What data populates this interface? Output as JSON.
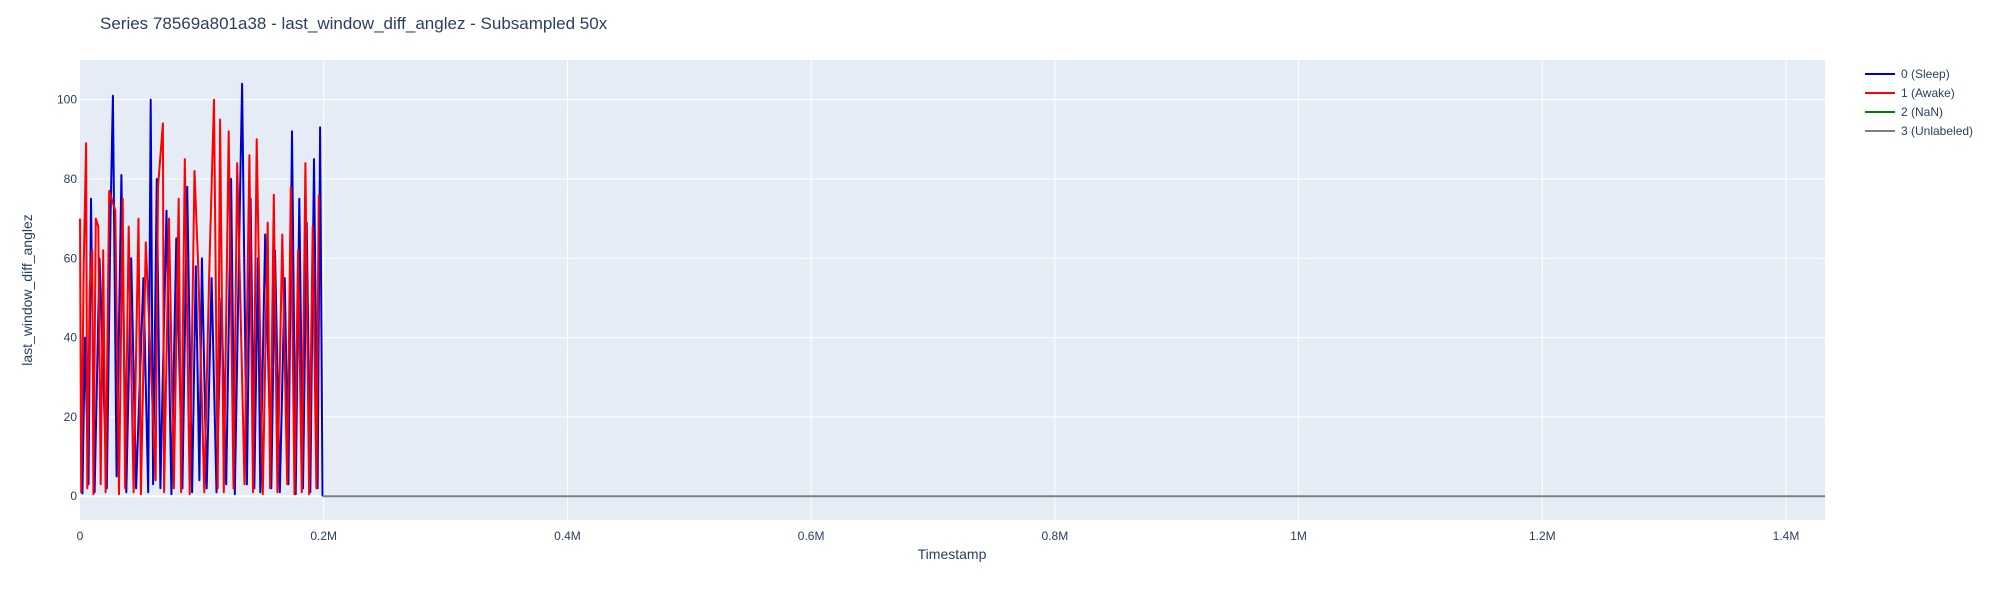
{
  "chart_data": {
    "type": "line",
    "title": "Series 78569a801a38 - last_window_diff_anglez - Subsampled 50x",
    "xlabel": "Timestamp",
    "ylabel": "last_window_diff_anglez",
    "xlim": [
      0,
      1432000
    ],
    "ylim": [
      -6,
      110
    ],
    "x_ticks": [
      {
        "value": 0,
        "label": "0"
      },
      {
        "value": 200000,
        "label": "0.2M"
      },
      {
        "value": 400000,
        "label": "0.4M"
      },
      {
        "value": 600000,
        "label": "0.6M"
      },
      {
        "value": 800000,
        "label": "0.8M"
      },
      {
        "value": 1000000,
        "label": "1M"
      },
      {
        "value": 1200000,
        "label": "1.2M"
      },
      {
        "value": 1400000,
        "label": "1.4M"
      }
    ],
    "y_ticks": [
      {
        "value": 0,
        "label": "0"
      },
      {
        "value": 20,
        "label": "20"
      },
      {
        "value": 40,
        "label": "40"
      },
      {
        "value": 60,
        "label": "60"
      },
      {
        "value": 80,
        "label": "80"
      },
      {
        "value": 100,
        "label": "100"
      }
    ],
    "grid": true,
    "legend_position": "top-right",
    "series": [
      {
        "name": "0 (Sleep)",
        "color": "#0000cc",
        "x": [
          2000,
          4000,
          7000,
          9000,
          12000,
          16000,
          22000,
          25000,
          27000,
          30000,
          34000,
          38000,
          42000,
          46000,
          52000,
          56000,
          58000,
          60000,
          63000,
          66000,
          71000,
          75000,
          79000,
          84000,
          88000,
          92000,
          95000,
          98000,
          100000,
          104000,
          108000,
          112000,
          116000,
          120000,
          124000,
          127000,
          131000,
          133000,
          137000,
          140000,
          143000,
          146000,
          148000,
          152000,
          157000,
          160000,
          164000,
          168000,
          171000,
          174000,
          177000,
          180000,
          183000,
          186000,
          189000,
          192000,
          195000,
          197000,
          199000
        ],
        "y": [
          0.5,
          40,
          3,
          75,
          1,
          60,
          2,
          70,
          101,
          5,
          81,
          1,
          60,
          2,
          55,
          1,
          100,
          3,
          80,
          2,
          72,
          0.5,
          65,
          2,
          78,
          1,
          58,
          4,
          60,
          2,
          55,
          1,
          50,
          3,
          80,
          0.5,
          70,
          104,
          3,
          75,
          2,
          60,
          1,
          66,
          2,
          62,
          1,
          55,
          3,
          92,
          0.5,
          75,
          2,
          69,
          1,
          85,
          2,
          93,
          0
        ]
      },
      {
        "name": "1 (Awake)",
        "color": "#ff0000",
        "x": [
          0,
          1000,
          3000,
          5000,
          6000,
          8000,
          10000,
          11000,
          13000,
          15000,
          17000,
          19000,
          21000,
          24000,
          29000,
          32000,
          35000,
          37000,
          40000,
          44000,
          48000,
          50000,
          54000,
          62000,
          64000,
          68000,
          69000,
          73000,
          77000,
          81000,
          83000,
          86000,
          90000,
          94000,
          97000,
          102000,
          106000,
          110000,
          113000,
          115000,
          118000,
          122000,
          126000,
          129000,
          135000,
          139000,
          142000,
          145000,
          150000,
          154000,
          156000,
          159000,
          162000,
          166000,
          170000,
          173000,
          176000,
          179000,
          182000,
          185000,
          188000,
          191000,
          194000,
          196000
        ],
        "y": [
          70,
          1,
          58,
          89,
          2,
          52,
          62,
          0.5,
          70,
          68,
          3,
          62,
          1,
          77,
          72,
          0.5,
          75,
          2,
          68,
          1,
          70,
          0.5,
          64,
          4,
          78,
          94,
          1,
          70,
          2,
          75,
          1,
          85,
          0.5,
          82,
          58,
          1,
          56,
          100,
          2,
          95,
          1,
          92,
          2,
          84,
          3,
          86,
          1,
          90,
          0.5,
          69,
          2,
          76,
          1,
          66,
          3,
          78,
          0.5,
          62,
          1,
          84,
          0.5,
          68,
          2,
          76
        ]
      },
      {
        "name": "2 (NaN)",
        "color": "#008000",
        "x": [],
        "y": []
      },
      {
        "name": "3 (Unlabeled)",
        "color": "#808080",
        "x": [
          199000,
          1432000
        ],
        "y": [
          0,
          0
        ]
      }
    ]
  }
}
